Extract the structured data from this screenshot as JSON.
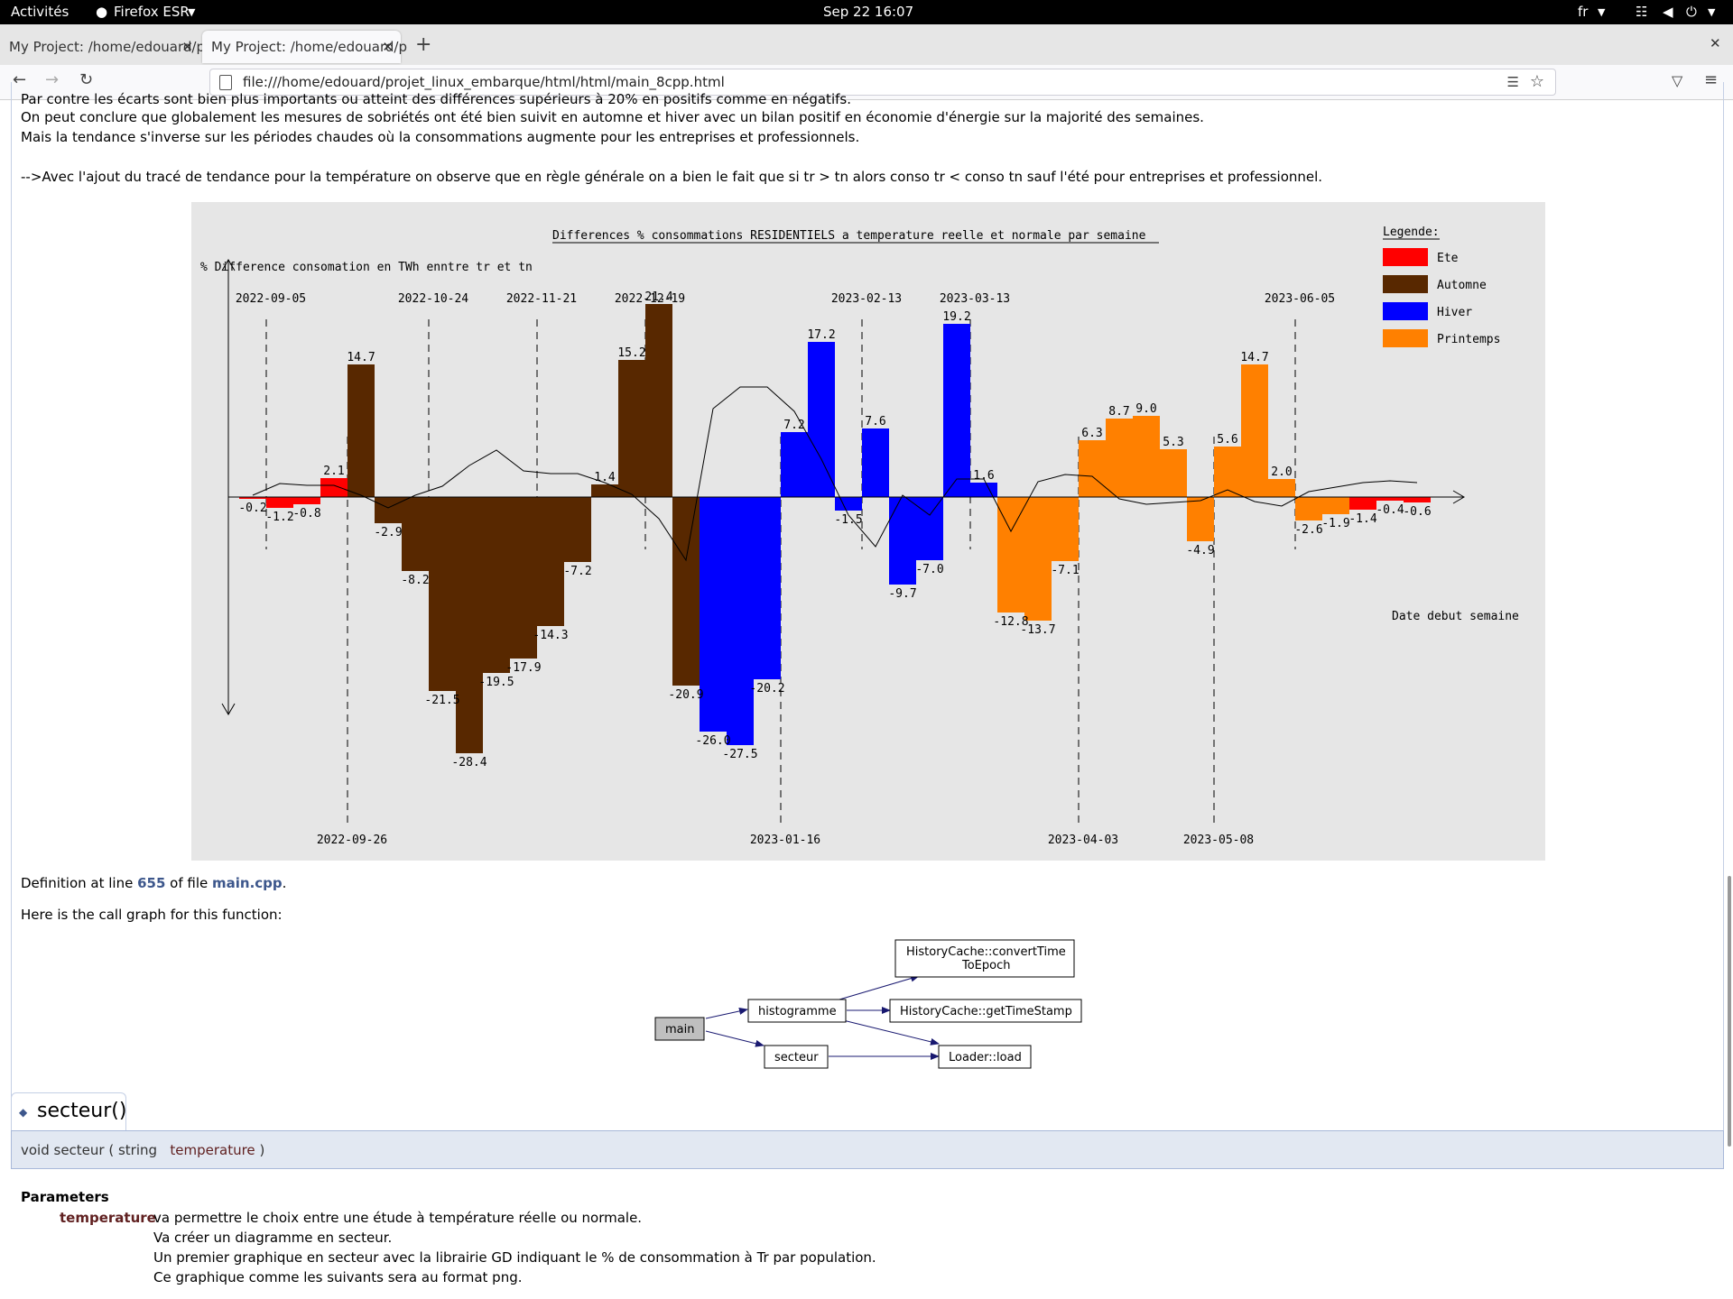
{
  "topbar": {
    "activities": "Activités",
    "app": "Firefox ESR",
    "clock": "Sep 22  16:07",
    "lang": "fr"
  },
  "tabs": [
    {
      "label": "My Project: /home/edouard/p"
    },
    {
      "label": "My Project: /home/edouard/p"
    }
  ],
  "urlbar": {
    "url": "file:///home/edouard/projet_linux_embarque/html/html/main_8cpp.html"
  },
  "page": {
    "para_cut": "Par contre les écarts sont bien plus importants ou atteint des différences supérieurs à 20% en positifs comme en négatifs.",
    "para1": "On peut conclure que globalement les mesures de sobriétés ont été bien suivit en automne et hiver avec un bilan positif en économie d'énergie sur la majorité des semaines.",
    "para2": "Mais la tendance s'inverse sur les périodes chaudes où la consommations augmente pour les entreprises et professionnels.",
    "para3": "-->Avec l'ajout du tracé de tendance pour la température on observe que en règle générale on a bien le fait que si tr > tn alors conso tr < conso tn sauf l'été pour entreprises et professionnel.",
    "def_prefix": "Definition at line ",
    "def_line": "655",
    "def_mid": " of file ",
    "def_file": "main.cpp",
    "def_suffix": ".",
    "callgraph_label": "Here is the call graph for this function:"
  },
  "chart_data": {
    "type": "bar",
    "title": "Differences % consommations RESIDENTIELS a temperature reelle et normale par semaine",
    "ylabel": "% Difference consomation en TWh enntre tr et tn",
    "xlabel": "Date debut semaine",
    "legend_title": "Legende:",
    "legend_position": "top-right",
    "series": [
      {
        "name": "Ete",
        "color": "#ff0000"
      },
      {
        "name": "Automne",
        "color": "#582800"
      },
      {
        "name": "Hiver",
        "color": "#0000ff"
      },
      {
        "name": "Printemps",
        "color": "#ff8000"
      }
    ],
    "top_dates": [
      "2022-09-05",
      "2022-10-24",
      "2022-11-21",
      "2022-12-19",
      "2023-02-13",
      "2023-03-13",
      "2023-06-05"
    ],
    "bottom_dates": [
      "2022-09-26",
      "2023-01-16",
      "2023-04-03",
      "2023-05-08"
    ],
    "values": [
      -0.2,
      -1.2,
      -0.8,
      2.1,
      14.7,
      -2.9,
      -8.2,
      -21.5,
      -28.4,
      -19.5,
      -17.9,
      -14.3,
      -7.2,
      1.4,
      15.2,
      21.4,
      -20.9,
      -26.0,
      -27.5,
      -20.2,
      7.2,
      17.2,
      -1.5,
      7.6,
      -9.7,
      -7.0,
      19.2,
      1.6,
      -12.8,
      -13.7,
      -7.1,
      6.3,
      8.7,
      9.0,
      5.3,
      -4.9,
      5.6,
      14.7,
      2.0,
      -2.6,
      -1.9,
      -1.4,
      -0.4,
      -0.6
    ],
    "seasons": [
      "Ete",
      "Ete",
      "Ete",
      "Ete",
      "Automne",
      "Automne",
      "Automne",
      "Automne",
      "Automne",
      "Automne",
      "Automne",
      "Automne",
      "Automne",
      "Automne",
      "Automne",
      "Automne",
      "Automne",
      "Hiver",
      "Hiver",
      "Hiver",
      "Hiver",
      "Hiver",
      "Hiver",
      "Hiver",
      "Hiver",
      "Hiver",
      "Hiver",
      "Hiver",
      "Printemps",
      "Printemps",
      "Printemps",
      "Printemps",
      "Printemps",
      "Printemps",
      "Printemps",
      "Printemps",
      "Printemps",
      "Printemps",
      "Printemps",
      "Printemps",
      "Printemps",
      "Ete",
      "Ete",
      "Ete"
    ],
    "labels": [
      "-0.2",
      "-1.2",
      "-0.8",
      "2.1",
      "14.7",
      "-2.9",
      "-8.2",
      "-21.5",
      "-28.4",
      "-19.5",
      "-17.9",
      "-14.3",
      "-7.2",
      "1.4",
      "15.2",
      "21.4",
      "-20.9",
      "-26.0",
      "-27.5",
      "-20.2",
      "7.2",
      "17.2",
      "-1.5",
      "7.6",
      "-9.7",
      "-7.0",
      "19.2",
      "1.6",
      "-12.8",
      "-13.7",
      "-7.1",
      "6.3",
      "8.7",
      "9.0",
      "5.3",
      "-4.9",
      "5.6",
      "14.7",
      "2.0",
      "-2.6",
      "-1.9",
      "-1.4",
      "-0.4",
      "-0.6"
    ],
    "trend": [
      0.2,
      1.5,
      1.3,
      1.3,
      0.2,
      -1.2,
      0.2,
      1.2,
      3.5,
      5.2,
      2.9,
      2.6,
      2.6,
      1.6,
      0.3,
      -2.4,
      -7.0,
      9.8,
      12.2,
      12.2,
      9.5,
      4.2,
      -2.0,
      -5.5,
      0.2,
      -2.0,
      2.0,
      2.0,
      -3.8,
      1.7,
      2.5,
      2.3,
      -0.2,
      -0.8,
      -0.6,
      -0.4,
      0.8,
      -0.5,
      -1.0,
      0.6,
      1.1,
      1.6,
      1.8,
      1.6
    ]
  },
  "callgraph": {
    "nodes": [
      {
        "id": "main",
        "label": "main"
      },
      {
        "id": "histogramme",
        "label": "histogramme"
      },
      {
        "id": "secteur",
        "label": "secteur"
      },
      {
        "id": "convert1",
        "label": "HistoryCache::convertTime"
      },
      {
        "id": "convert2",
        "label": "ToEpoch"
      },
      {
        "id": "gettime",
        "label": "HistoryCache::getTimeStamp"
      },
      {
        "id": "load",
        "label": "Loader::load"
      }
    ]
  },
  "member": {
    "title": "secteur()",
    "proto_prefix": "void secteur ( string",
    "proto_param": "temperature",
    "proto_suffix": ")"
  },
  "params": {
    "heading": "Parameters",
    "name": "temperature",
    "lines": [
      "va permettre le choix entre une étude à température réelle ou normale.",
      "Va créer un diagramme en secteur.",
      "Un premier graphique en secteur avec la librairie GD indiquant le % de consommation à Tr par population.",
      "Ce graphique comme les suivants sera au format png."
    ]
  }
}
